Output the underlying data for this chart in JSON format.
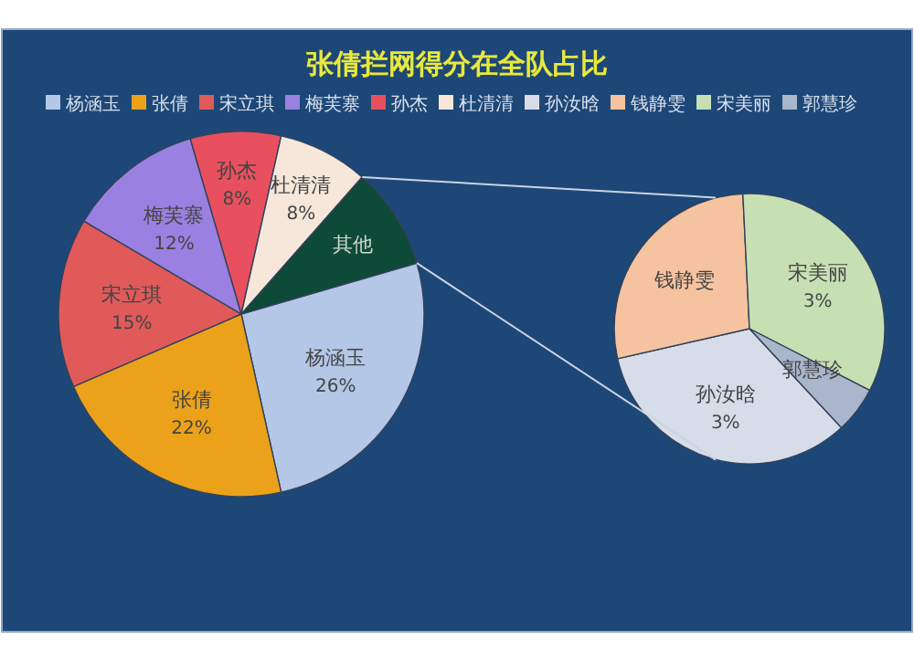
{
  "chart_data": [
    {
      "type": "pie",
      "title": "张倩拦网得分在全队占比",
      "legend": "top",
      "categories": [
        "杨涵玉",
        "张倩",
        "宋立琪",
        "梅芙寨",
        "孙杰",
        "杜清清",
        "其他"
      ],
      "values": [
        26,
        22,
        15,
        12,
        8,
        8,
        9
      ],
      "colors": [
        "#b4c7e7",
        "#eba21a",
        "#e05a5a",
        "#9a80e0",
        "#e8505f",
        "#f6e7da",
        "#0e4a38"
      ],
      "value_labels": [
        "26%",
        "22%",
        "15%",
        "12%",
        "8%",
        "8%",
        null
      ]
    },
    {
      "type": "pie",
      "categories": [
        "孙汝晗",
        "钱静雯",
        "宋美丽",
        "郭慧珍"
      ],
      "values": [
        3,
        2.5,
        3,
        0.5
      ],
      "colors": [
        "#d6dde9",
        "#f6c3a0",
        "#c6e0b4",
        "#a9b6cc"
      ],
      "value_labels": [
        "3%",
        null,
        "3%",
        null
      ]
    }
  ]
}
